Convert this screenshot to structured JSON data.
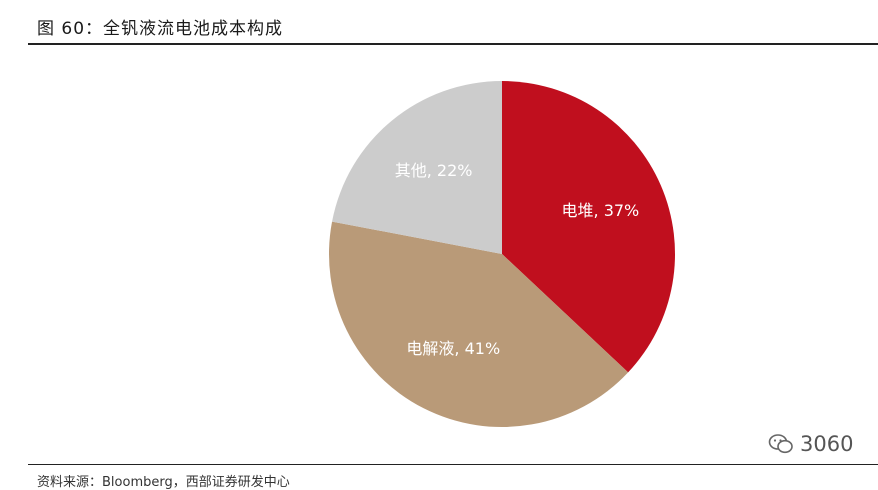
{
  "header": {
    "title": "图 60：全钒液流电池成本构成"
  },
  "footer": {
    "source": "资料来源：Bloomberg，西部证券研发中心"
  },
  "watermark": {
    "text": "3060",
    "icon": "wechat-icon"
  },
  "chart_data": {
    "type": "pie",
    "title": "",
    "start_angle_deg": 0,
    "direction": "clockwise",
    "slices": [
      {
        "label": "电堆, 37%",
        "name": "电堆",
        "value": 37,
        "color": "#c00f1e"
      },
      {
        "label": "电解液, 41%",
        "name": "电解液",
        "value": 41,
        "color": "#b99a78"
      },
      {
        "label": "其他, 22%",
        "name": "其他",
        "value": 22,
        "color": "#cccccc"
      }
    ]
  }
}
